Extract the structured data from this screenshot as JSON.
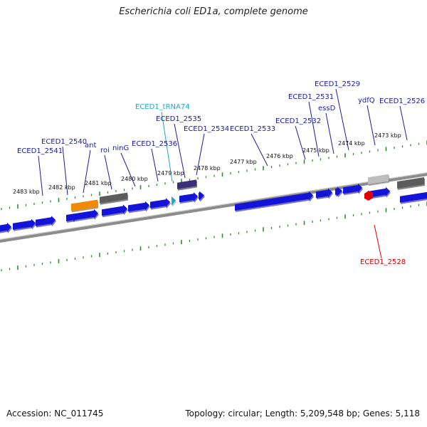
{
  "title": "Escherichia coli ED1a, complete genome",
  "footer": {
    "accession": "Accession: NC_011745",
    "summary": "Topology: circular; Length: 5,209,548 bp; Genes: 5,118"
  },
  "colors": {
    "cds": "#1414d9",
    "cds_light": "#5a5aff",
    "gene_label": "#1a1aa6",
    "trna": "#22a7c9",
    "orange_feature": "#f08a00",
    "gray_feature": "#5c5c5c",
    "light_gray_feature": "#bdbdbd",
    "purple_feature": "#3a2f7a",
    "red_feature": "#e00000",
    "tick": "#2f8f2f",
    "backbone": "#8c8c8c"
  },
  "kbp_labels": [
    "2483 kbp",
    "2482 kbp",
    "2481 kbp",
    "2480 kbp",
    "2479 kbp",
    "2478 kbp",
    "2477 kbp",
    "2476 kbp",
    "2475 kbp",
    "2474 kbp",
    "2473 kbp"
  ],
  "gene_labels": [
    {
      "text": "ECED1_2541",
      "type": "gene"
    },
    {
      "text": "ECED1_2540",
      "type": "gene"
    },
    {
      "text": "ant",
      "type": "gene"
    },
    {
      "text": "roi",
      "type": "gene"
    },
    {
      "text": "ninG",
      "type": "gene"
    },
    {
      "text": "ECED1_2536",
      "type": "gene"
    },
    {
      "text": "ECED1_tRNA74",
      "type": "trna"
    },
    {
      "text": "ECED1_2535",
      "type": "gene"
    },
    {
      "text": "ECED1_2534",
      "type": "gene"
    },
    {
      "text": "ECED1_2533",
      "type": "gene"
    },
    {
      "text": "ECED1_2532",
      "type": "gene"
    },
    {
      "text": "ECED1_2531",
      "type": "gene"
    },
    {
      "text": "essD",
      "type": "gene"
    },
    {
      "text": "ECED1_2529",
      "type": "gene"
    },
    {
      "text": "ydfQ",
      "type": "gene"
    },
    {
      "text": "ECED1_2526",
      "type": "gene"
    },
    {
      "text": "ECED1_2528",
      "type": "red"
    }
  ]
}
